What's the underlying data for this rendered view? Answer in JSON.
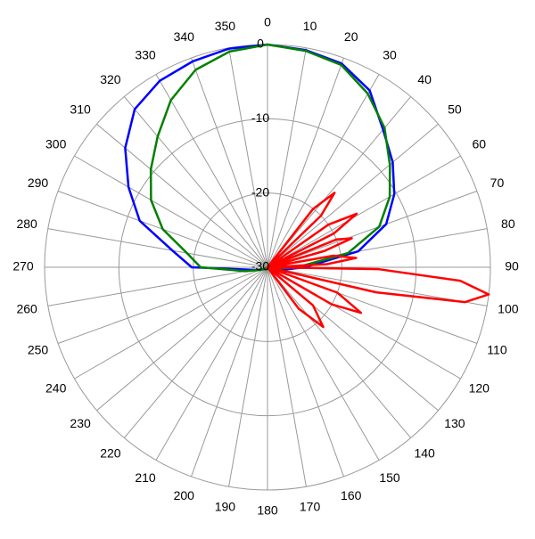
{
  "chart_data": {
    "type": "polar",
    "rlim": [
      -30,
      0
    ],
    "rticks": [
      -30,
      -20,
      -10,
      0
    ],
    "thetaticks": [
      0,
      10,
      20,
      30,
      40,
      50,
      60,
      70,
      80,
      90,
      100,
      110,
      120,
      130,
      140,
      150,
      160,
      170,
      180,
      190,
      200,
      210,
      220,
      230,
      240,
      250,
      260,
      270,
      280,
      290,
      300,
      310,
      320,
      330,
      340,
      350
    ],
    "grid": true,
    "series": [
      {
        "color": "#0000ff",
        "theta": [
          0,
          10,
          20,
          30,
          40,
          50,
          60,
          70,
          80,
          90,
          100,
          110,
          120,
          130,
          140,
          150,
          160,
          170,
          180,
          190,
          200,
          210,
          220,
          230,
          240,
          250,
          260,
          270,
          280,
          290,
          300,
          310,
          320,
          330,
          340,
          350,
          360
        ],
        "values": [
          0,
          -0.3,
          -0.8,
          -2.5,
          -5.8,
          -8,
          -10.3,
          -13,
          -17.6,
          -25,
          -28,
          -29.5,
          -29.8,
          -29.8,
          -29.8,
          -29.8,
          -29.8,
          -29.8,
          -29.8,
          -29.8,
          -29.8,
          -29.8,
          -29.8,
          -29.8,
          -29.5,
          -29,
          -28,
          -19.8,
          -17,
          -11.7,
          -8.4,
          -5,
          -2.2,
          -1,
          -0.5,
          -0.1,
          0
        ]
      },
      {
        "color": "#008000",
        "theta": [
          0,
          10,
          20,
          30,
          40,
          50,
          60,
          70,
          80,
          90,
          100,
          110,
          120,
          130,
          140,
          150,
          160,
          170,
          180,
          190,
          200,
          210,
          220,
          230,
          240,
          250,
          260,
          270,
          280,
          290,
          300,
          310,
          320,
          330,
          340,
          350,
          360
        ],
        "values": [
          0,
          -0.4,
          -1,
          -3,
          -5.5,
          -8.5,
          -11,
          -14,
          -19,
          -26,
          -29,
          -29.8,
          -29.8,
          -29.8,
          -29.8,
          -29.8,
          -29.8,
          -29.8,
          -29.8,
          -29.8,
          -29.8,
          -29.8,
          -29.8,
          -29.8,
          -29.6,
          -29,
          -27,
          -21,
          -19,
          -15,
          -11.9,
          -9.5,
          -7,
          -4,
          -1.7,
          -0.5,
          0
        ]
      },
      {
        "color": "#ff0000",
        "theta": [
          30,
          38,
          42,
          46,
          50,
          55,
          59,
          63,
          66,
          68,
          71,
          74,
          77,
          80,
          84,
          87,
          89,
          91,
          94,
          97,
          100,
          103,
          106,
          110,
          116,
          120,
          125,
          130,
          137,
          143,
          150
        ],
        "values": [
          -30,
          -20,
          -16.5,
          -20,
          -30,
          -20,
          -16,
          -20,
          -30,
          -20,
          -18,
          -22,
          -30,
          -21,
          -18,
          -22,
          -30,
          -15,
          -4,
          0,
          -3,
          -15,
          -30,
          -20,
          -16,
          -20,
          -30,
          -22,
          -19,
          -23,
          -30
        ]
      }
    ]
  }
}
